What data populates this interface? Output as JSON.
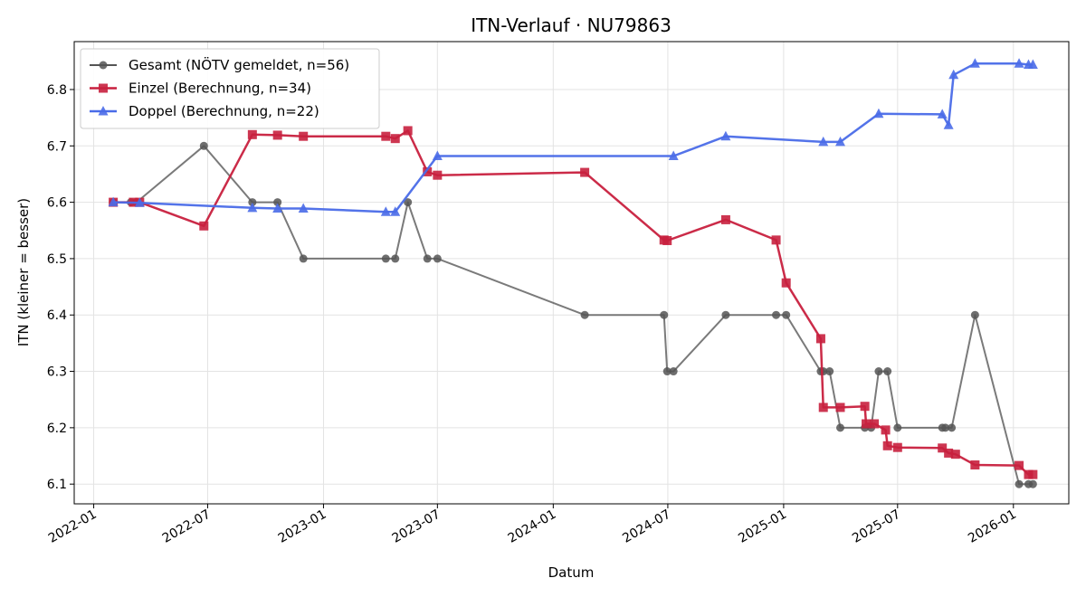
{
  "chart_data": {
    "type": "line",
    "title": "ITN-Verlauf · NU79863",
    "xlabel": "Datum",
    "ylabel": "ITN  (kleiner = besser)",
    "x_type": "date",
    "xlim": [
      "2021-12-01",
      "2026-03-30"
    ],
    "ylim": [
      6.065,
      6.885
    ],
    "x_ticks": [
      "2022-01-01",
      "2022-07-01",
      "2023-01-01",
      "2023-07-01",
      "2024-01-01",
      "2024-07-01",
      "2025-01-01",
      "2025-07-01",
      "2026-01-01"
    ],
    "x_tick_labels": [
      "2022-01",
      "2022-07",
      "2023-01",
      "2023-07",
      "2024-01",
      "2024-07",
      "2025-01",
      "2025-07",
      "2026-01"
    ],
    "y_ticks": [
      6.1,
      6.2,
      6.3,
      6.4,
      6.5,
      6.6,
      6.7,
      6.8
    ],
    "y_tick_labels": [
      "6.1",
      "6.2",
      "6.3",
      "6.4",
      "6.5",
      "6.6",
      "6.7",
      "6.8"
    ],
    "grid": true,
    "legend_position": "top-left",
    "series": [
      {
        "name": "Gesamt (NÖTV gemeldet, n=56)",
        "color": "#555555",
        "marker": "circle",
        "points": [
          [
            "2022-02-01",
            6.6
          ],
          [
            "2022-03-01",
            6.6
          ],
          [
            "2022-03-10",
            6.6
          ],
          [
            "2022-06-25",
            6.7
          ],
          [
            "2022-09-10",
            6.6
          ],
          [
            "2022-10-20",
            6.6
          ],
          [
            "2022-11-30",
            6.5
          ],
          [
            "2023-04-10",
            6.5
          ],
          [
            "2023-04-25",
            6.5
          ],
          [
            "2023-05-15",
            6.6
          ],
          [
            "2023-06-15",
            6.5
          ],
          [
            "2023-07-01",
            6.5
          ],
          [
            "2024-02-20",
            6.4
          ],
          [
            "2024-06-25",
            6.4
          ],
          [
            "2024-06-30",
            6.3
          ],
          [
            "2024-07-10",
            6.3
          ],
          [
            "2024-10-01",
            6.4
          ],
          [
            "2024-12-20",
            6.4
          ],
          [
            "2025-01-05",
            6.4
          ],
          [
            "2025-03-01",
            6.3
          ],
          [
            "2025-03-05",
            6.3
          ],
          [
            "2025-03-15",
            6.3
          ],
          [
            "2025-04-01",
            6.2
          ],
          [
            "2025-05-10",
            6.2
          ],
          [
            "2025-05-20",
            6.2
          ],
          [
            "2025-06-01",
            6.3
          ],
          [
            "2025-06-15",
            6.3
          ],
          [
            "2025-07-01",
            6.2
          ],
          [
            "2025-09-10",
            6.2
          ],
          [
            "2025-09-15",
            6.2
          ],
          [
            "2025-09-25",
            6.2
          ],
          [
            "2025-11-01",
            6.4
          ],
          [
            "2026-01-10",
            6.1
          ],
          [
            "2026-01-25",
            6.1
          ],
          [
            "2026-02-01",
            6.1
          ]
        ]
      },
      {
        "name": "Einzel (Berechnung, n=34)",
        "color": "#c8203e",
        "marker": "square",
        "points": [
          [
            "2022-02-01",
            6.6
          ],
          [
            "2022-03-05",
            6.6
          ],
          [
            "2022-03-15",
            6.6
          ],
          [
            "2022-06-25",
            6.558
          ],
          [
            "2022-09-10",
            6.72
          ],
          [
            "2022-10-20",
            6.719
          ],
          [
            "2022-11-30",
            6.717
          ],
          [
            "2023-04-10",
            6.717
          ],
          [
            "2023-04-25",
            6.713
          ],
          [
            "2023-05-15",
            6.727
          ],
          [
            "2023-06-15",
            6.654
          ],
          [
            "2023-07-01",
            6.648
          ],
          [
            "2024-02-20",
            6.653
          ],
          [
            "2024-06-25",
            6.533
          ],
          [
            "2024-06-30",
            6.532
          ],
          [
            "2024-10-01",
            6.569
          ],
          [
            "2024-12-20",
            6.533
          ],
          [
            "2025-01-05",
            6.457
          ],
          [
            "2025-03-01",
            6.358
          ],
          [
            "2025-03-05",
            6.236
          ],
          [
            "2025-04-01",
            6.236
          ],
          [
            "2025-05-10",
            6.238
          ],
          [
            "2025-05-12",
            6.207
          ],
          [
            "2025-05-25",
            6.207
          ],
          [
            "2025-06-12",
            6.196
          ],
          [
            "2025-06-15",
            6.168
          ],
          [
            "2025-07-01",
            6.165
          ],
          [
            "2025-09-10",
            6.164
          ],
          [
            "2025-09-20",
            6.155
          ],
          [
            "2025-10-01",
            6.153
          ],
          [
            "2025-11-01",
            6.134
          ],
          [
            "2026-01-10",
            6.133
          ],
          [
            "2026-01-25",
            6.117
          ],
          [
            "2026-02-01",
            6.117
          ]
        ]
      },
      {
        "name": "Doppel (Berechnung, n=22)",
        "color": "#4a6be8",
        "marker": "triangle",
        "points": [
          [
            "2022-02-01",
            6.6
          ],
          [
            "2022-03-15",
            6.599
          ],
          [
            "2022-09-10",
            6.59
          ],
          [
            "2022-10-20",
            6.589
          ],
          [
            "2022-11-30",
            6.589
          ],
          [
            "2023-04-10",
            6.583
          ],
          [
            "2023-04-25",
            6.583
          ],
          [
            "2023-07-01",
            6.682
          ],
          [
            "2024-07-10",
            6.682
          ],
          [
            "2024-10-01",
            6.717
          ],
          [
            "2025-03-05",
            6.707
          ],
          [
            "2025-04-01",
            6.707
          ],
          [
            "2025-06-01",
            6.757
          ],
          [
            "2025-09-10",
            6.756
          ],
          [
            "2025-09-20",
            6.737
          ],
          [
            "2025-09-28",
            6.826
          ],
          [
            "2025-11-01",
            6.846
          ],
          [
            "2026-01-10",
            6.846
          ],
          [
            "2026-01-25",
            6.844
          ],
          [
            "2026-02-01",
            6.844
          ]
        ]
      }
    ]
  }
}
